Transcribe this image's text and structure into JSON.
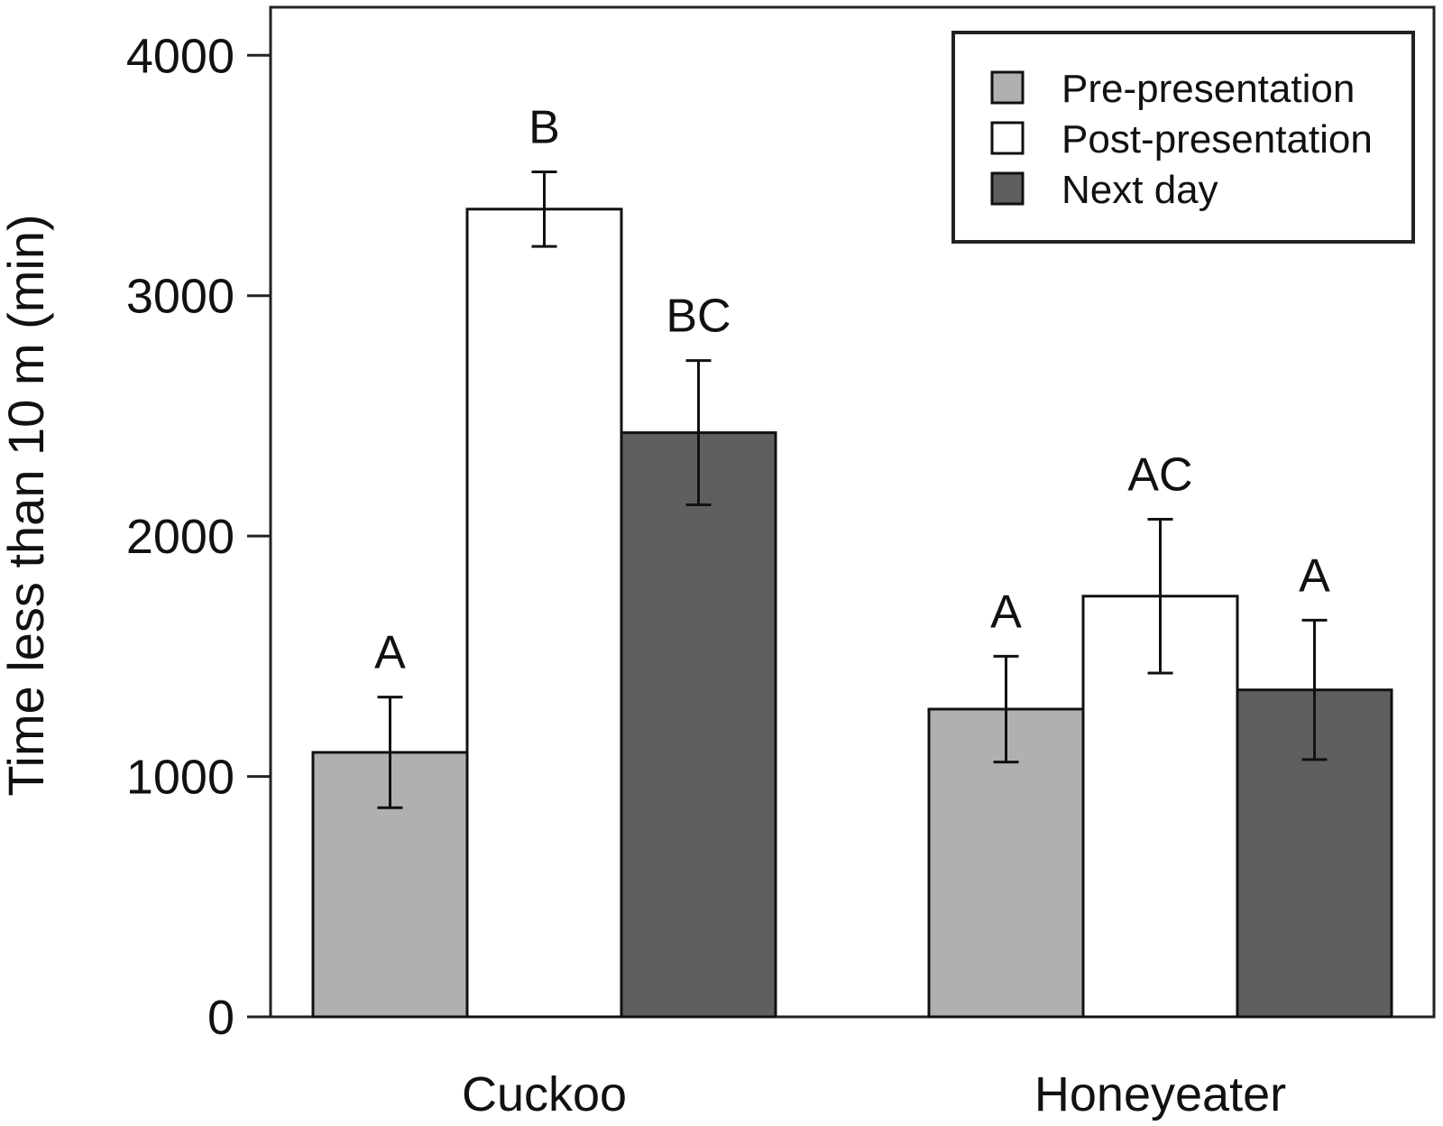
{
  "chart_data": {
    "type": "bar",
    "title": "",
    "xlabel": "",
    "ylabel": "Time less than 10 m (min)",
    "ylim": [
      0,
      4200
    ],
    "yticks": [
      0,
      1000,
      2000,
      3000,
      4000
    ],
    "ytick_labels": [
      "0",
      "1000",
      "2000",
      "3000",
      "4000"
    ],
    "grid": false,
    "legend_position": "top-right",
    "categories": [
      "Cuckoo",
      "Honeyeater"
    ],
    "series": [
      {
        "name": "Pre-presentation",
        "color": "#b0b0b0",
        "values": [
          1100,
          1280
        ],
        "error": [
          230,
          220
        ],
        "labels": [
          "A",
          "A"
        ]
      },
      {
        "name": "Post-presentation",
        "color": "#ffffff",
        "values": [
          3360,
          1750
        ],
        "error": [
          155,
          320
        ],
        "labels": [
          "B",
          "AC"
        ]
      },
      {
        "name": "Next day",
        "color": "#5f5f5f",
        "values": [
          2430,
          1360
        ],
        "error": [
          300,
          290
        ],
        "labels": [
          "BC",
          "A"
        ]
      }
    ]
  }
}
